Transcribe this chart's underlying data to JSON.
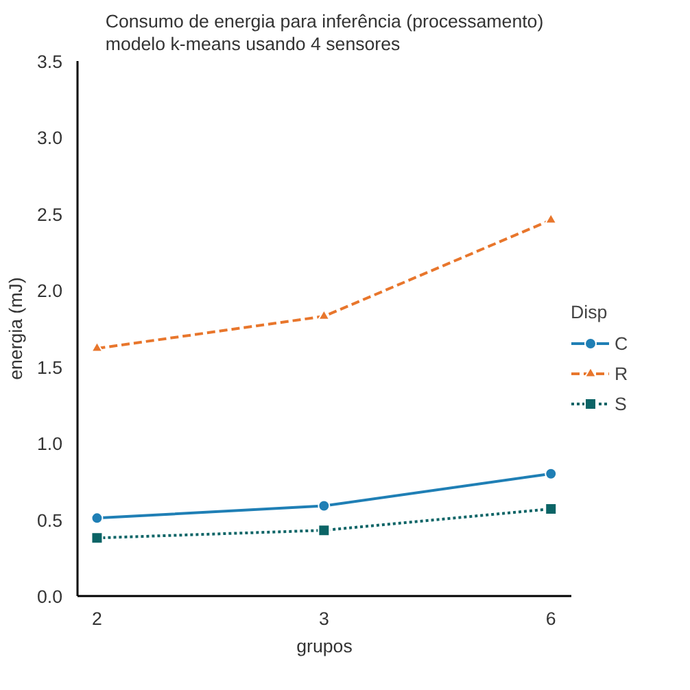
{
  "chart_data": {
    "type": "line",
    "title": "Consumo de energia para inferência (processamento)\nmodelo k-means usando 4 sensores",
    "xlabel": "grupos",
    "ylabel": "energia (mJ)",
    "legend_title": "Disp",
    "categories": [
      "2",
      "3",
      "6"
    ],
    "ylim": [
      0,
      3.5
    ],
    "yticks": [
      {
        "value": 0,
        "label": "0.0"
      },
      {
        "value": 0.5,
        "label": "0.5"
      },
      {
        "value": 1,
        "label": "1.0"
      },
      {
        "value": 1.5,
        "label": "1.5"
      },
      {
        "value": 2,
        "label": "2.0"
      },
      {
        "value": 2.5,
        "label": "2.5"
      },
      {
        "value": 3,
        "label": "3.0"
      },
      {
        "value": 3.5,
        "label": "3.5"
      }
    ],
    "grid": false,
    "legend": "right",
    "series": [
      {
        "name": "C",
        "color": "#1f7fb5",
        "values": [
          0.51,
          0.59,
          0.8
        ],
        "marker": "circle",
        "line_style": "solid"
      },
      {
        "name": "R",
        "color": "#e8762c",
        "values": [
          1.62,
          1.83,
          2.46
        ],
        "marker": "triangle",
        "line_style": "dashed"
      },
      {
        "name": "S",
        "color": "#0b6466",
        "values": [
          0.38,
          0.43,
          0.57
        ],
        "marker": "square",
        "line_style": "dotted"
      }
    ]
  }
}
